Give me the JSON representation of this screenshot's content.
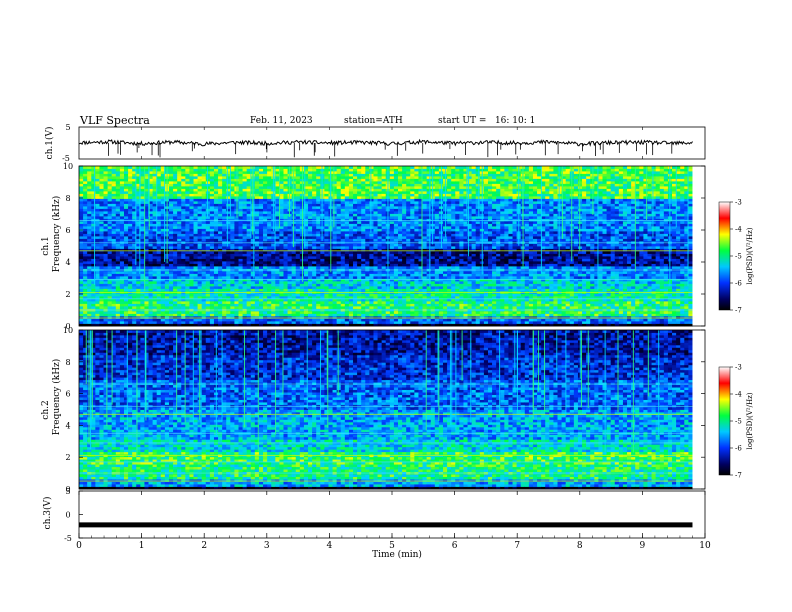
{
  "header": {
    "title": "VLF Spectra",
    "date": "Feb. 11, 2023",
    "station": "station=ATH",
    "start_ut": "start UT =   16: 10: 1"
  },
  "colors": {
    "colormap": [
      "#ffffff",
      "#000000",
      "#0000ff",
      "#00ffff",
      "#00ff00",
      "#ffff00",
      "#ff0000",
      "#ffffff"
    ]
  },
  "chart_data": [
    {
      "type": "line",
      "ylabel": "ch.1(V)",
      "ylim": [
        -5,
        5
      ],
      "yticks": [
        "5",
        "-5"
      ],
      "x_unit": "min",
      "xlim": [
        0,
        9.8
      ],
      "series": [
        {
          "x": [
            0,
            0.5,
            1,
            1.5,
            2,
            2.5,
            3,
            3.5,
            4,
            4.5,
            5,
            5.5,
            6,
            6.5,
            7,
            7.5,
            8,
            8.5,
            9,
            9.5,
            9.8
          ],
          "values": [
            0.1,
            0.4,
            -0.2,
            0.3,
            -0.3,
            0.2,
            -0.1,
            0.3,
            0.0,
            0.2,
            -0.2,
            0.4,
            -0.1,
            0.2,
            0.0,
            0.3,
            -0.3,
            0.1,
            0.2,
            -0.1,
            0.1
          ]
        }
      ]
    },
    {
      "type": "heatmap",
      "ylabel": "Frequency (kHz)",
      "channel_label": "ch.1",
      "ylim": [
        0,
        10
      ],
      "yticks": [
        "0",
        "2",
        "4",
        "6",
        "8",
        "10"
      ],
      "colorbar": {
        "label": "log(PSD)(V²/Hz)",
        "range": [
          -7,
          -3
        ],
        "ticks": [
          "-3",
          "-4",
          "-5",
          "-6",
          "-7"
        ]
      },
      "bands_khz": [
        {
          "freq": [
            0.2,
            0.7
          ],
          "level": 0.32
        },
        {
          "freq": [
            0.7,
            1.5
          ],
          "level": 0.58
        },
        {
          "freq": [
            1.5,
            2.3
          ],
          "level": 0.52
        },
        {
          "freq": [
            2.3,
            3.0
          ],
          "level": 0.45
        },
        {
          "freq": [
            3.0,
            3.8
          ],
          "level": 0.36
        },
        {
          "freq": [
            3.8,
            4.8
          ],
          "level": 0.16
        },
        {
          "freq": [
            4.8,
            6.0
          ],
          "level": 0.3
        },
        {
          "freq": [
            6.0,
            8.0
          ],
          "level": 0.36
        },
        {
          "freq": [
            8.0,
            10.0
          ],
          "level": 0.62
        }
      ]
    },
    {
      "type": "heatmap",
      "ylabel": "Frequency (kHz)",
      "channel_label": "ch.2",
      "ylim": [
        0,
        10
      ],
      "yticks": [
        "0",
        "2",
        "4",
        "6",
        "8",
        "10"
      ],
      "colorbar": {
        "label": "log(PSD)(V²/Hz)",
        "range": [
          -7,
          -3
        ],
        "ticks": [
          "-3",
          "-4",
          "-5",
          "-6",
          "-7"
        ]
      },
      "bands_khz": [
        {
          "freq": [
            0.2,
            0.7
          ],
          "level": 0.4
        },
        {
          "freq": [
            0.7,
            1.5
          ],
          "level": 0.56
        },
        {
          "freq": [
            1.5,
            2.3
          ],
          "level": 0.6
        },
        {
          "freq": [
            2.3,
            3.2
          ],
          "level": 0.48
        },
        {
          "freq": [
            3.2,
            5.0
          ],
          "level": 0.4
        },
        {
          "freq": [
            5.0,
            6.8
          ],
          "level": 0.32
        },
        {
          "freq": [
            6.8,
            8.5
          ],
          "level": 0.24
        },
        {
          "freq": [
            8.5,
            10.0
          ],
          "level": 0.18
        }
      ]
    },
    {
      "type": "line",
      "ylabel": "ch.3(V)",
      "ylim": [
        -5,
        5
      ],
      "yticks": [
        "5",
        "0",
        "-5"
      ],
      "xlabel": "Time (min)",
      "xticks": [
        "0",
        "1",
        "2",
        "3",
        "4",
        "5",
        "6",
        "7",
        "8",
        "9",
        "10"
      ],
      "xlim": [
        0,
        10
      ],
      "series": [
        {
          "x": [
            0,
            9.8
          ],
          "values": [
            -2.2,
            -2.2
          ]
        }
      ]
    }
  ]
}
